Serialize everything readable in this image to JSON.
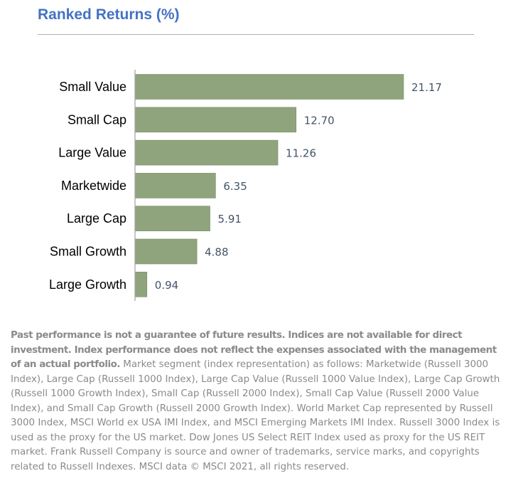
{
  "title": "Ranked Returns (%)",
  "colors": {
    "title": "#4472C4",
    "bar": "#8FA47D",
    "bar_edge": "#7A8F68",
    "value_label": "#44546A",
    "category_label": "#000000",
    "axis": "#a6a6a6",
    "footnote": "#8a8a8a"
  },
  "chart_data": {
    "type": "bar",
    "orientation": "horizontal",
    "title": "Ranked Returns (%)",
    "categories": [
      "Small Value",
      "Small Cap",
      "Large Value",
      "Marketwide",
      "Large Cap",
      "Small Growth",
      "Large Growth"
    ],
    "values": [
      21.17,
      12.7,
      11.26,
      6.35,
      5.91,
      4.88,
      0.94
    ],
    "value_labels": [
      "21.17",
      "12.70",
      "11.26",
      "6.35",
      "5.91",
      "4.88",
      "0.94"
    ],
    "xlim": [
      0,
      21.17
    ],
    "grid": false,
    "legend": "none"
  },
  "footnote": {
    "bold": "Past performance is not a guarantee of future results. Indices are not available for direct investment. Index performance does not reflect the expenses associated with the management of an actual portfolio.",
    "body": " Market segment (index representation) as follows: Marketwide (Russell 3000 Index), Large Cap (Russell 1000 Index), Large Cap Value (Russell 1000 Value Index), Large Cap Growth (Russell 1000 Growth Index), Small Cap (Russell 2000 Index), Small Cap Value (Russell 2000 Value Index), and Small Cap Growth (Russell 2000 Growth Index). World Market Cap represented by Russell 3000 Index, MSCI World ex USA IMI Index, and MSCI Emerging Markets IMI Index. Russell 3000 Index is used as the proxy for the US market. Dow Jones US Select REIT Index used as proxy for the US REIT market. Frank Russell Company is source and owner of trademarks, service marks, and copyrights related to Russell Indexes. MSCI data © MSCI 2021, all rights reserved."
  }
}
